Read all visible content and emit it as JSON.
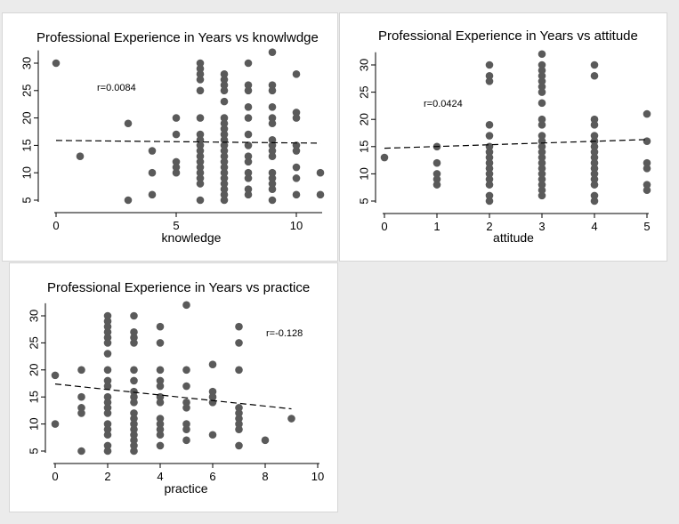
{
  "chart_data": [
    {
      "type": "scatter",
      "title": "Professional Experience in Years vs knowlwdge",
      "xlabel": "knowledge",
      "ylabel": "",
      "xlim": [
        0,
        11
      ],
      "ylim": [
        5,
        32
      ],
      "xticks": [
        "0",
        "5",
        "10"
      ],
      "yticks": [
        "5",
        "10",
        "15",
        "20",
        "25",
        "30"
      ],
      "annotation": "r=0.0084",
      "fit_line": {
        "x0": 0,
        "y0": 15.9,
        "x1": 11,
        "y1": 15.4
      },
      "points": [
        {
          "x": 0,
          "y": 30
        },
        {
          "x": 1,
          "y": 13
        },
        {
          "x": 3,
          "y": 19
        },
        {
          "x": 3,
          "y": 5
        },
        {
          "x": 4,
          "y": 14
        },
        {
          "x": 4,
          "y": 10
        },
        {
          "x": 4,
          "y": 6
        },
        {
          "x": 5,
          "y": 20
        },
        {
          "x": 5,
          "y": 17
        },
        {
          "x": 5,
          "y": 12
        },
        {
          "x": 5,
          "y": 11
        },
        {
          "x": 5,
          "y": 10
        },
        {
          "x": 6,
          "y": 30
        },
        {
          "x": 6,
          "y": 29
        },
        {
          "x": 6,
          "y": 28
        },
        {
          "x": 6,
          "y": 27
        },
        {
          "x": 6,
          "y": 25
        },
        {
          "x": 6,
          "y": 20
        },
        {
          "x": 6,
          "y": 17
        },
        {
          "x": 6,
          "y": 16
        },
        {
          "x": 6,
          "y": 15
        },
        {
          "x": 6,
          "y": 14
        },
        {
          "x": 6,
          "y": 13
        },
        {
          "x": 6,
          "y": 12
        },
        {
          "x": 6,
          "y": 11
        },
        {
          "x": 6,
          "y": 10
        },
        {
          "x": 6,
          "y": 9
        },
        {
          "x": 6,
          "y": 8
        },
        {
          "x": 6,
          "y": 5
        },
        {
          "x": 7,
          "y": 28
        },
        {
          "x": 7,
          "y": 27
        },
        {
          "x": 7,
          "y": 26
        },
        {
          "x": 7,
          "y": 25
        },
        {
          "x": 7,
          "y": 23
        },
        {
          "x": 7,
          "y": 20
        },
        {
          "x": 7,
          "y": 19
        },
        {
          "x": 7,
          "y": 18
        },
        {
          "x": 7,
          "y": 17
        },
        {
          "x": 7,
          "y": 16
        },
        {
          "x": 7,
          "y": 15
        },
        {
          "x": 7,
          "y": 14
        },
        {
          "x": 7,
          "y": 13
        },
        {
          "x": 7,
          "y": 12
        },
        {
          "x": 7,
          "y": 11
        },
        {
          "x": 7,
          "y": 10
        },
        {
          "x": 7,
          "y": 9
        },
        {
          "x": 7,
          "y": 8
        },
        {
          "x": 7,
          "y": 7
        },
        {
          "x": 7,
          "y": 6
        },
        {
          "x": 7,
          "y": 5
        },
        {
          "x": 8,
          "y": 30
        },
        {
          "x": 8,
          "y": 26
        },
        {
          "x": 8,
          "y": 25
        },
        {
          "x": 8,
          "y": 22
        },
        {
          "x": 8,
          "y": 20
        },
        {
          "x": 8,
          "y": 17
        },
        {
          "x": 8,
          "y": 15
        },
        {
          "x": 8,
          "y": 13
        },
        {
          "x": 8,
          "y": 12
        },
        {
          "x": 8,
          "y": 10
        },
        {
          "x": 8,
          "y": 9
        },
        {
          "x": 8,
          "y": 7
        },
        {
          "x": 8,
          "y": 6
        },
        {
          "x": 9,
          "y": 32
        },
        {
          "x": 9,
          "y": 26
        },
        {
          "x": 9,
          "y": 25
        },
        {
          "x": 9,
          "y": 22
        },
        {
          "x": 9,
          "y": 20
        },
        {
          "x": 9,
          "y": 19
        },
        {
          "x": 9,
          "y": 16
        },
        {
          "x": 9,
          "y": 15
        },
        {
          "x": 9,
          "y": 14
        },
        {
          "x": 9,
          "y": 13
        },
        {
          "x": 9,
          "y": 10
        },
        {
          "x": 9,
          "y": 9
        },
        {
          "x": 9,
          "y": 8
        },
        {
          "x": 9,
          "y": 7
        },
        {
          "x": 9,
          "y": 5
        },
        {
          "x": 10,
          "y": 28
        },
        {
          "x": 10,
          "y": 21
        },
        {
          "x": 10,
          "y": 20
        },
        {
          "x": 10,
          "y": 15
        },
        {
          "x": 10,
          "y": 14
        },
        {
          "x": 10,
          "y": 11
        },
        {
          "x": 10,
          "y": 9
        },
        {
          "x": 10,
          "y": 6
        },
        {
          "x": 11,
          "y": 10
        },
        {
          "x": 11,
          "y": 6
        }
      ]
    },
    {
      "type": "scatter",
      "title": "Professional Experience in Years vs attitude",
      "xlabel": "attitude",
      "ylabel": "",
      "xlim": [
        0,
        5
      ],
      "ylim": [
        5,
        32
      ],
      "xticks": [
        "0",
        "1",
        "2",
        "3",
        "4",
        "5"
      ],
      "yticks": [
        "5",
        "10",
        "15",
        "20",
        "25",
        "30"
      ],
      "annotation": "r=0.0424",
      "fit_line": {
        "x0": 0,
        "y0": 14.7,
        "x1": 5,
        "y1": 16.3
      },
      "points": [
        {
          "x": 0,
          "y": 13
        },
        {
          "x": 1,
          "y": 15
        },
        {
          "x": 1,
          "y": 12
        },
        {
          "x": 1,
          "y": 10
        },
        {
          "x": 1,
          "y": 9
        },
        {
          "x": 1,
          "y": 8
        },
        {
          "x": 2,
          "y": 30
        },
        {
          "x": 2,
          "y": 28
        },
        {
          "x": 2,
          "y": 27
        },
        {
          "x": 2,
          "y": 19
        },
        {
          "x": 2,
          "y": 17
        },
        {
          "x": 2,
          "y": 15
        },
        {
          "x": 2,
          "y": 14
        },
        {
          "x": 2,
          "y": 13
        },
        {
          "x": 2,
          "y": 12
        },
        {
          "x": 2,
          "y": 11
        },
        {
          "x": 2,
          "y": 10
        },
        {
          "x": 2,
          "y": 9
        },
        {
          "x": 2,
          "y": 8
        },
        {
          "x": 2,
          "y": 6
        },
        {
          "x": 2,
          "y": 5
        },
        {
          "x": 3,
          "y": 32
        },
        {
          "x": 3,
          "y": 30
        },
        {
          "x": 3,
          "y": 29
        },
        {
          "x": 3,
          "y": 28
        },
        {
          "x": 3,
          "y": 27
        },
        {
          "x": 3,
          "y": 26
        },
        {
          "x": 3,
          "y": 25
        },
        {
          "x": 3,
          "y": 23
        },
        {
          "x": 3,
          "y": 20
        },
        {
          "x": 3,
          "y": 19
        },
        {
          "x": 3,
          "y": 17
        },
        {
          "x": 3,
          "y": 16
        },
        {
          "x": 3,
          "y": 15
        },
        {
          "x": 3,
          "y": 14
        },
        {
          "x": 3,
          "y": 13
        },
        {
          "x": 3,
          "y": 12
        },
        {
          "x": 3,
          "y": 11
        },
        {
          "x": 3,
          "y": 10
        },
        {
          "x": 3,
          "y": 9
        },
        {
          "x": 3,
          "y": 8
        },
        {
          "x": 3,
          "y": 7
        },
        {
          "x": 3,
          "y": 6
        },
        {
          "x": 4,
          "y": 30
        },
        {
          "x": 4,
          "y": 28
        },
        {
          "x": 4,
          "y": 20
        },
        {
          "x": 4,
          "y": 19
        },
        {
          "x": 4,
          "y": 17
        },
        {
          "x": 4,
          "y": 16
        },
        {
          "x": 4,
          "y": 15
        },
        {
          "x": 4,
          "y": 14
        },
        {
          "x": 4,
          "y": 13
        },
        {
          "x": 4,
          "y": 12
        },
        {
          "x": 4,
          "y": 11
        },
        {
          "x": 4,
          "y": 10
        },
        {
          "x": 4,
          "y": 9
        },
        {
          "x": 4,
          "y": 8
        },
        {
          "x": 4,
          "y": 6
        },
        {
          "x": 4,
          "y": 5
        },
        {
          "x": 5,
          "y": 21
        },
        {
          "x": 5,
          "y": 16
        },
        {
          "x": 5,
          "y": 12
        },
        {
          "x": 5,
          "y": 11
        },
        {
          "x": 5,
          "y": 8
        },
        {
          "x": 5,
          "y": 7
        }
      ]
    },
    {
      "type": "scatter",
      "title": "Professional Experience in Years vs practice",
      "xlabel": "practice",
      "ylabel": "",
      "xlim": [
        0,
        10
      ],
      "ylim": [
        5,
        32
      ],
      "xticks": [
        "0",
        "2",
        "4",
        "6",
        "8",
        "10"
      ],
      "yticks": [
        "5",
        "10",
        "15",
        "20",
        "25",
        "30"
      ],
      "annotation": "r=-0.128",
      "fit_line": {
        "x0": 0,
        "y0": 17.4,
        "x1": 9,
        "y1": 12.8
      },
      "points": [
        {
          "x": 0,
          "y": 19
        },
        {
          "x": 0,
          "y": 10
        },
        {
          "x": 1,
          "y": 20
        },
        {
          "x": 1,
          "y": 15
        },
        {
          "x": 1,
          "y": 13
        },
        {
          "x": 1,
          "y": 12
        },
        {
          "x": 1,
          "y": 5
        },
        {
          "x": 2,
          "y": 30
        },
        {
          "x": 2,
          "y": 29
        },
        {
          "x": 2,
          "y": 28
        },
        {
          "x": 2,
          "y": 27
        },
        {
          "x": 2,
          "y": 26
        },
        {
          "x": 2,
          "y": 25
        },
        {
          "x": 2,
          "y": 23
        },
        {
          "x": 2,
          "y": 20
        },
        {
          "x": 2,
          "y": 18
        },
        {
          "x": 2,
          "y": 17
        },
        {
          "x": 2,
          "y": 15
        },
        {
          "x": 2,
          "y": 14
        },
        {
          "x": 2,
          "y": 13
        },
        {
          "x": 2,
          "y": 12
        },
        {
          "x": 2,
          "y": 10
        },
        {
          "x": 2,
          "y": 9
        },
        {
          "x": 2,
          "y": 8
        },
        {
          "x": 2,
          "y": 6
        },
        {
          "x": 2,
          "y": 5
        },
        {
          "x": 3,
          "y": 30
        },
        {
          "x": 3,
          "y": 27
        },
        {
          "x": 3,
          "y": 26
        },
        {
          "x": 3,
          "y": 25
        },
        {
          "x": 3,
          "y": 20
        },
        {
          "x": 3,
          "y": 18
        },
        {
          "x": 3,
          "y": 16
        },
        {
          "x": 3,
          "y": 15
        },
        {
          "x": 3,
          "y": 14
        },
        {
          "x": 3,
          "y": 12
        },
        {
          "x": 3,
          "y": 11
        },
        {
          "x": 3,
          "y": 10
        },
        {
          "x": 3,
          "y": 9
        },
        {
          "x": 3,
          "y": 8
        },
        {
          "x": 3,
          "y": 7
        },
        {
          "x": 3,
          "y": 6
        },
        {
          "x": 3,
          "y": 5
        },
        {
          "x": 4,
          "y": 28
        },
        {
          "x": 4,
          "y": 25
        },
        {
          "x": 4,
          "y": 20
        },
        {
          "x": 4,
          "y": 18
        },
        {
          "x": 4,
          "y": 17
        },
        {
          "x": 4,
          "y": 15
        },
        {
          "x": 4,
          "y": 14
        },
        {
          "x": 4,
          "y": 11
        },
        {
          "x": 4,
          "y": 10
        },
        {
          "x": 4,
          "y": 9
        },
        {
          "x": 4,
          "y": 8
        },
        {
          "x": 4,
          "y": 6
        },
        {
          "x": 5,
          "y": 32
        },
        {
          "x": 5,
          "y": 20
        },
        {
          "x": 5,
          "y": 17
        },
        {
          "x": 5,
          "y": 14
        },
        {
          "x": 5,
          "y": 13
        },
        {
          "x": 5,
          "y": 10
        },
        {
          "x": 5,
          "y": 9
        },
        {
          "x": 5,
          "y": 7
        },
        {
          "x": 6,
          "y": 21
        },
        {
          "x": 6,
          "y": 16
        },
        {
          "x": 6,
          "y": 15
        },
        {
          "x": 6,
          "y": 14
        },
        {
          "x": 6,
          "y": 8
        },
        {
          "x": 7,
          "y": 28
        },
        {
          "x": 7,
          "y": 25
        },
        {
          "x": 7,
          "y": 20
        },
        {
          "x": 7,
          "y": 13
        },
        {
          "x": 7,
          "y": 12
        },
        {
          "x": 7,
          "y": 11
        },
        {
          "x": 7,
          "y": 10
        },
        {
          "x": 7,
          "y": 9
        },
        {
          "x": 7,
          "y": 6
        },
        {
          "x": 8,
          "y": 7
        },
        {
          "x": 9,
          "y": 11
        }
      ]
    }
  ],
  "colors": {
    "marker": "#5a5a5a",
    "axis": "#000000",
    "fit_line": "#000000",
    "panel_bg": "#ffffff",
    "page_bg": "#ebebeb"
  }
}
